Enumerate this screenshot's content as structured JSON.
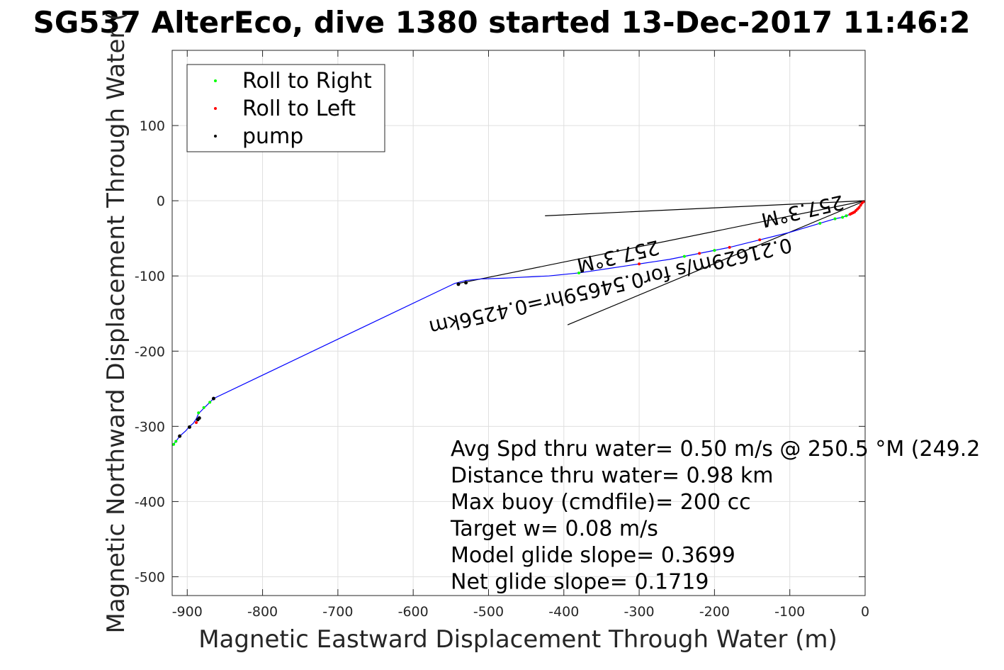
{
  "chart_data": {
    "type": "line",
    "title": "SG537 AlterEco, dive 1380 started 13-Dec-2017 11:46:2",
    "xlabel": "Magnetic Eastward Displacement Through Water (m)",
    "ylabel": "Magnetic Northward Displacement Through Water (",
    "xlim": [
      -920,
      0
    ],
    "ylim": [
      -525,
      200
    ],
    "xticks": [
      -900,
      -800,
      -700,
      -600,
      -500,
      -400,
      -300,
      -200,
      -100,
      0
    ],
    "yticks": [
      -500,
      -400,
      -300,
      -200,
      -100,
      0,
      100
    ],
    "grid": true,
    "legend_position": "top-left",
    "legend": [
      {
        "label": "Roll to Right",
        "color": "#00ff00"
      },
      {
        "label": "Roll to Left",
        "color": "#ff0000"
      },
      {
        "label": "pump",
        "color": "#000000"
      }
    ],
    "track": {
      "color": "#0000ff",
      "x": [
        0,
        -5,
        -12,
        -20,
        -30,
        -40,
        -60,
        -80,
        -100,
        -120,
        -140,
        -160,
        -180,
        -200,
        -220,
        -240,
        -260,
        -280,
        -300,
        -320,
        -340,
        -360,
        -380,
        -400,
        -420,
        -440,
        -460,
        -480,
        -510,
        -530,
        -545,
        -865,
        -870,
        -875,
        -880,
        -885,
        -888,
        -892,
        -897,
        -902,
        -910,
        -915,
        -920
      ],
      "y": [
        0,
        -5,
        -12,
        -18,
        -22,
        -24,
        -30,
        -36,
        -42,
        -47,
        -52,
        -57,
        -62,
        -66,
        -70,
        -74,
        -78,
        -81,
        -84,
        -87,
        -90,
        -93,
        -96,
        -98,
        -100,
        -101,
        -102,
        -103,
        -104,
        -106,
        -110,
        -263,
        -268,
        -273,
        -278,
        -283,
        -290,
        -296,
        -300,
        -306,
        -313,
        -320,
        -326
      ]
    },
    "roll_right": {
      "x": [
        -25,
        -30,
        -40,
        -60,
        -200,
        -240,
        -380,
        -870,
        -878,
        -885,
        -910,
        -915,
        -918
      ],
      "y": [
        -20,
        -22,
        -24,
        -30,
        -66,
        -74,
        -96,
        -268,
        -275,
        -282,
        -313,
        -320,
        -324
      ]
    },
    "roll_left": {
      "x": [
        -2,
        -4,
        -6,
        -8,
        -10,
        -12,
        -14,
        -16,
        -18,
        -20,
        -140,
        -180,
        -220,
        -300,
        -888
      ],
      "y": [
        -1,
        -3,
        -6,
        -9,
        -11,
        -13,
        -15,
        -16,
        -17,
        -18,
        -52,
        -62,
        -70,
        -84,
        -295
      ]
    },
    "pump": {
      "x": [
        -540,
        -530,
        -865,
        -884,
        -886,
        -897,
        -910
      ],
      "y": [
        -111,
        -109,
        -263,
        -289,
        -291,
        -301,
        -313
      ]
    },
    "reference_lines": [
      {
        "x": [
          0,
          -425
        ],
        "y": [
          0,
          -20
        ]
      },
      {
        "x": [
          0,
          -395
        ],
        "y": [
          0,
          -165
        ]
      },
      {
        "x": [
          0,
          -540
        ],
        "y": [
          0,
          -110
        ]
      }
    ],
    "annotations": [
      {
        "text": "0.21629m/s for0.54659hr=0.4256km",
        "x": -340,
        "y": -105,
        "rotation": 167
      },
      {
        "text": "257.3°M",
        "x": -330,
        "y": -65,
        "rotation": 167
      },
      {
        "text": "257.3°M",
        "x": -85,
        "y": -5,
        "rotation": 167
      }
    ],
    "stats": [
      "Avg Spd thru water=  0.50 m/s @ 250.5 °M (249.2",
      "Distance thru water=  0.98 km",
      "Max buoy (cmdfile)= 200 cc",
      "Target w= 0.08 m/s",
      "Model glide slope= 0.3699",
      "Net glide slope= 0.1719"
    ]
  }
}
